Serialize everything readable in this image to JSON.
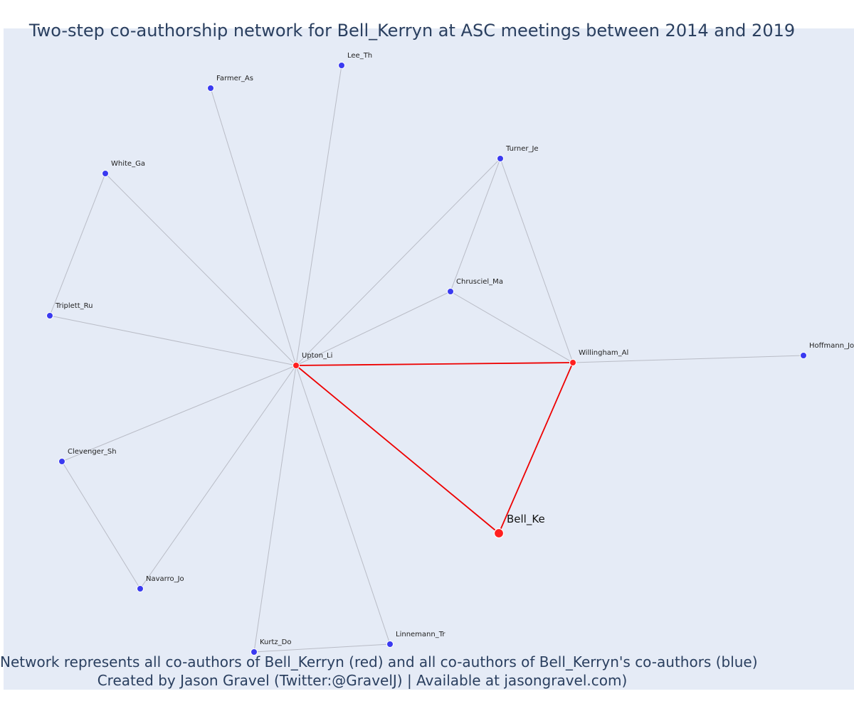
{
  "title": "Two-step co-authorship network for Bell_Kerryn at ASC meetings between 2014 and 2019",
  "caption_line1": "Network represents all co-authors of Bell_Kerryn (red) and all co-authors of Bell_Kerryn's co-authors (blue)",
  "caption_line2": "Created by Jason Gravel (Twitter:@GravelJ) | Available at jasongravel.com)",
  "colors": {
    "background": "#e5ebf6",
    "first_degree": "#ff1f1f",
    "second_degree": "#3a3af0",
    "edge_red": "#ee0000",
    "edge_grey": "#b9bcc6",
    "text": "#2a3f5f"
  },
  "nodes": [
    {
      "id": "Bell_Ke",
      "group": "focal"
    },
    {
      "id": "Upton_Li",
      "group": "first"
    },
    {
      "id": "Willingham_Al",
      "group": "first"
    },
    {
      "id": "Lee_Th",
      "group": "second"
    },
    {
      "id": "Farmer_As",
      "group": "second"
    },
    {
      "id": "White_Ga",
      "group": "second"
    },
    {
      "id": "Triplett_Ru",
      "group": "second"
    },
    {
      "id": "Turner_Je",
      "group": "second"
    },
    {
      "id": "Chrusciel_Ma",
      "group": "second"
    },
    {
      "id": "Hoffmann_Jo",
      "group": "second"
    },
    {
      "id": "Clevenger_Sh",
      "group": "second"
    },
    {
      "id": "Navarro_Jo",
      "group": "second"
    },
    {
      "id": "Kurtz_Do",
      "group": "second"
    },
    {
      "id": "Linnemann_Tr",
      "group": "second"
    }
  ],
  "edges": [
    {
      "source": "Bell_Ke",
      "target": "Upton_Li",
      "kind": "red"
    },
    {
      "source": "Bell_Ke",
      "target": "Willingham_Al",
      "kind": "red"
    },
    {
      "source": "Upton_Li",
      "target": "Willingham_Al",
      "kind": "red"
    },
    {
      "source": "Upton_Li",
      "target": "Lee_Th",
      "kind": "grey"
    },
    {
      "source": "Upton_Li",
      "target": "Farmer_As",
      "kind": "grey"
    },
    {
      "source": "Upton_Li",
      "target": "White_Ga",
      "kind": "grey"
    },
    {
      "source": "Upton_Li",
      "target": "Triplett_Ru",
      "kind": "grey"
    },
    {
      "source": "Upton_Li",
      "target": "Turner_Je",
      "kind": "grey"
    },
    {
      "source": "Upton_Li",
      "target": "Chrusciel_Ma",
      "kind": "grey"
    },
    {
      "source": "Upton_Li",
      "target": "Clevenger_Sh",
      "kind": "grey"
    },
    {
      "source": "Upton_Li",
      "target": "Navarro_Jo",
      "kind": "grey"
    },
    {
      "source": "Upton_Li",
      "target": "Kurtz_Do",
      "kind": "grey"
    },
    {
      "source": "Upton_Li",
      "target": "Linnemann_Tr",
      "kind": "grey"
    },
    {
      "source": "White_Ga",
      "target": "Triplett_Ru",
      "kind": "grey"
    },
    {
      "source": "Turner_Je",
      "target": "Chrusciel_Ma",
      "kind": "grey"
    },
    {
      "source": "Turner_Je",
      "target": "Willingham_Al",
      "kind": "grey"
    },
    {
      "source": "Chrusciel_Ma",
      "target": "Willingham_Al",
      "kind": "grey"
    },
    {
      "source": "Willingham_Al",
      "target": "Hoffmann_Jo",
      "kind": "grey"
    },
    {
      "source": "Clevenger_Sh",
      "target": "Navarro_Jo",
      "kind": "grey"
    },
    {
      "source": "Kurtz_Do",
      "target": "Linnemann_Tr",
      "kind": "grey"
    }
  ]
}
